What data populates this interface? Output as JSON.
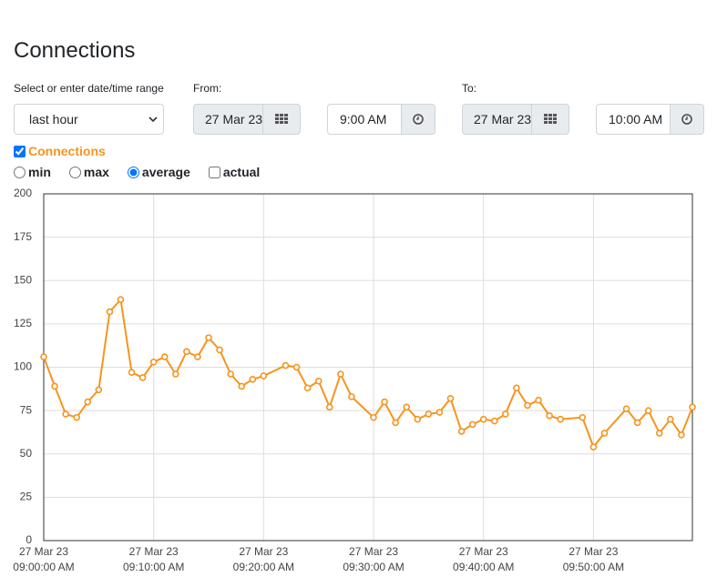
{
  "page": {
    "title": "Connections",
    "range_label": "Select or enter date/time range",
    "range_value": "last hour",
    "from_label": "From:",
    "from_date": "27 Mar 23",
    "from_time": "9:00 AM",
    "to_label": "To:",
    "to_date": "27 Mar 23",
    "to_time": "10:00 AM",
    "aggregations": [
      "min",
      "max",
      "average",
      "actual"
    ]
  },
  "chart_data": {
    "type": "line",
    "x": [
      "09:00:00",
      "09:01:00",
      "09:02:00",
      "09:03:00",
      "09:04:00",
      "09:05:00",
      "09:06:00",
      "09:07:00",
      "09:08:00",
      "09:09:00",
      "09:10:00",
      "09:11:00",
      "09:12:00",
      "09:13:00",
      "09:14:00",
      "09:15:00",
      "09:16:00",
      "09:17:00",
      "09:18:00",
      "09:19:00",
      "09:20:00",
      "09:22:00",
      "09:23:00",
      "09:24:00",
      "09:25:00",
      "09:26:00",
      "09:27:00",
      "09:28:00",
      "09:30:00",
      "09:31:00",
      "09:32:00",
      "09:33:00",
      "09:34:00",
      "09:35:00",
      "09:36:00",
      "09:37:00",
      "09:38:00",
      "09:39:00",
      "09:40:00",
      "09:41:00",
      "09:42:00",
      "09:43:00",
      "09:44:00",
      "09:45:00",
      "09:46:00",
      "09:47:00",
      "09:49:00",
      "09:50:00",
      "09:51:00",
      "09:53:00",
      "09:54:00",
      "09:55:00",
      "09:56:00",
      "09:57:00",
      "09:58:00",
      "09:59:00"
    ],
    "series": [
      {
        "name": "Connections",
        "color": "#f7941d",
        "values": [
          106,
          89,
          73,
          71,
          80,
          87,
          132,
          139,
          97,
          94,
          103,
          106,
          96,
          109,
          106,
          117,
          110,
          96,
          89,
          93,
          95,
          101,
          100,
          88,
          92,
          77,
          96,
          83,
          71,
          80,
          68,
          77,
          70,
          73,
          74,
          82,
          63,
          67,
          70,
          69,
          73,
          88,
          78,
          81,
          72,
          70,
          71,
          54,
          62,
          76,
          68,
          75,
          62,
          70,
          61,
          77
        ]
      }
    ],
    "xlim": [
      "09:00:00",
      "09:59:00"
    ],
    "xticks": [
      {
        "value": "09:00:00",
        "label": [
          "27 Mar 23",
          "09:00:00 AM"
        ]
      },
      {
        "value": "09:10:00",
        "label": [
          "27 Mar 23",
          "09:10:00 AM"
        ]
      },
      {
        "value": "09:20:00",
        "label": [
          "27 Mar 23",
          "09:20:00 AM"
        ]
      },
      {
        "value": "09:30:00",
        "label": [
          "27 Mar 23",
          "09:30:00 AM"
        ]
      },
      {
        "value": "09:40:00",
        "label": [
          "27 Mar 23",
          "09:40:00 AM"
        ]
      },
      {
        "value": "09:50:00",
        "label": [
          "27 Mar 23",
          "09:50:00 AM"
        ]
      }
    ],
    "ylim": [
      0,
      200
    ],
    "yticks": [
      0,
      25,
      50,
      75,
      100,
      125,
      150,
      175,
      200
    ],
    "grid": true
  }
}
